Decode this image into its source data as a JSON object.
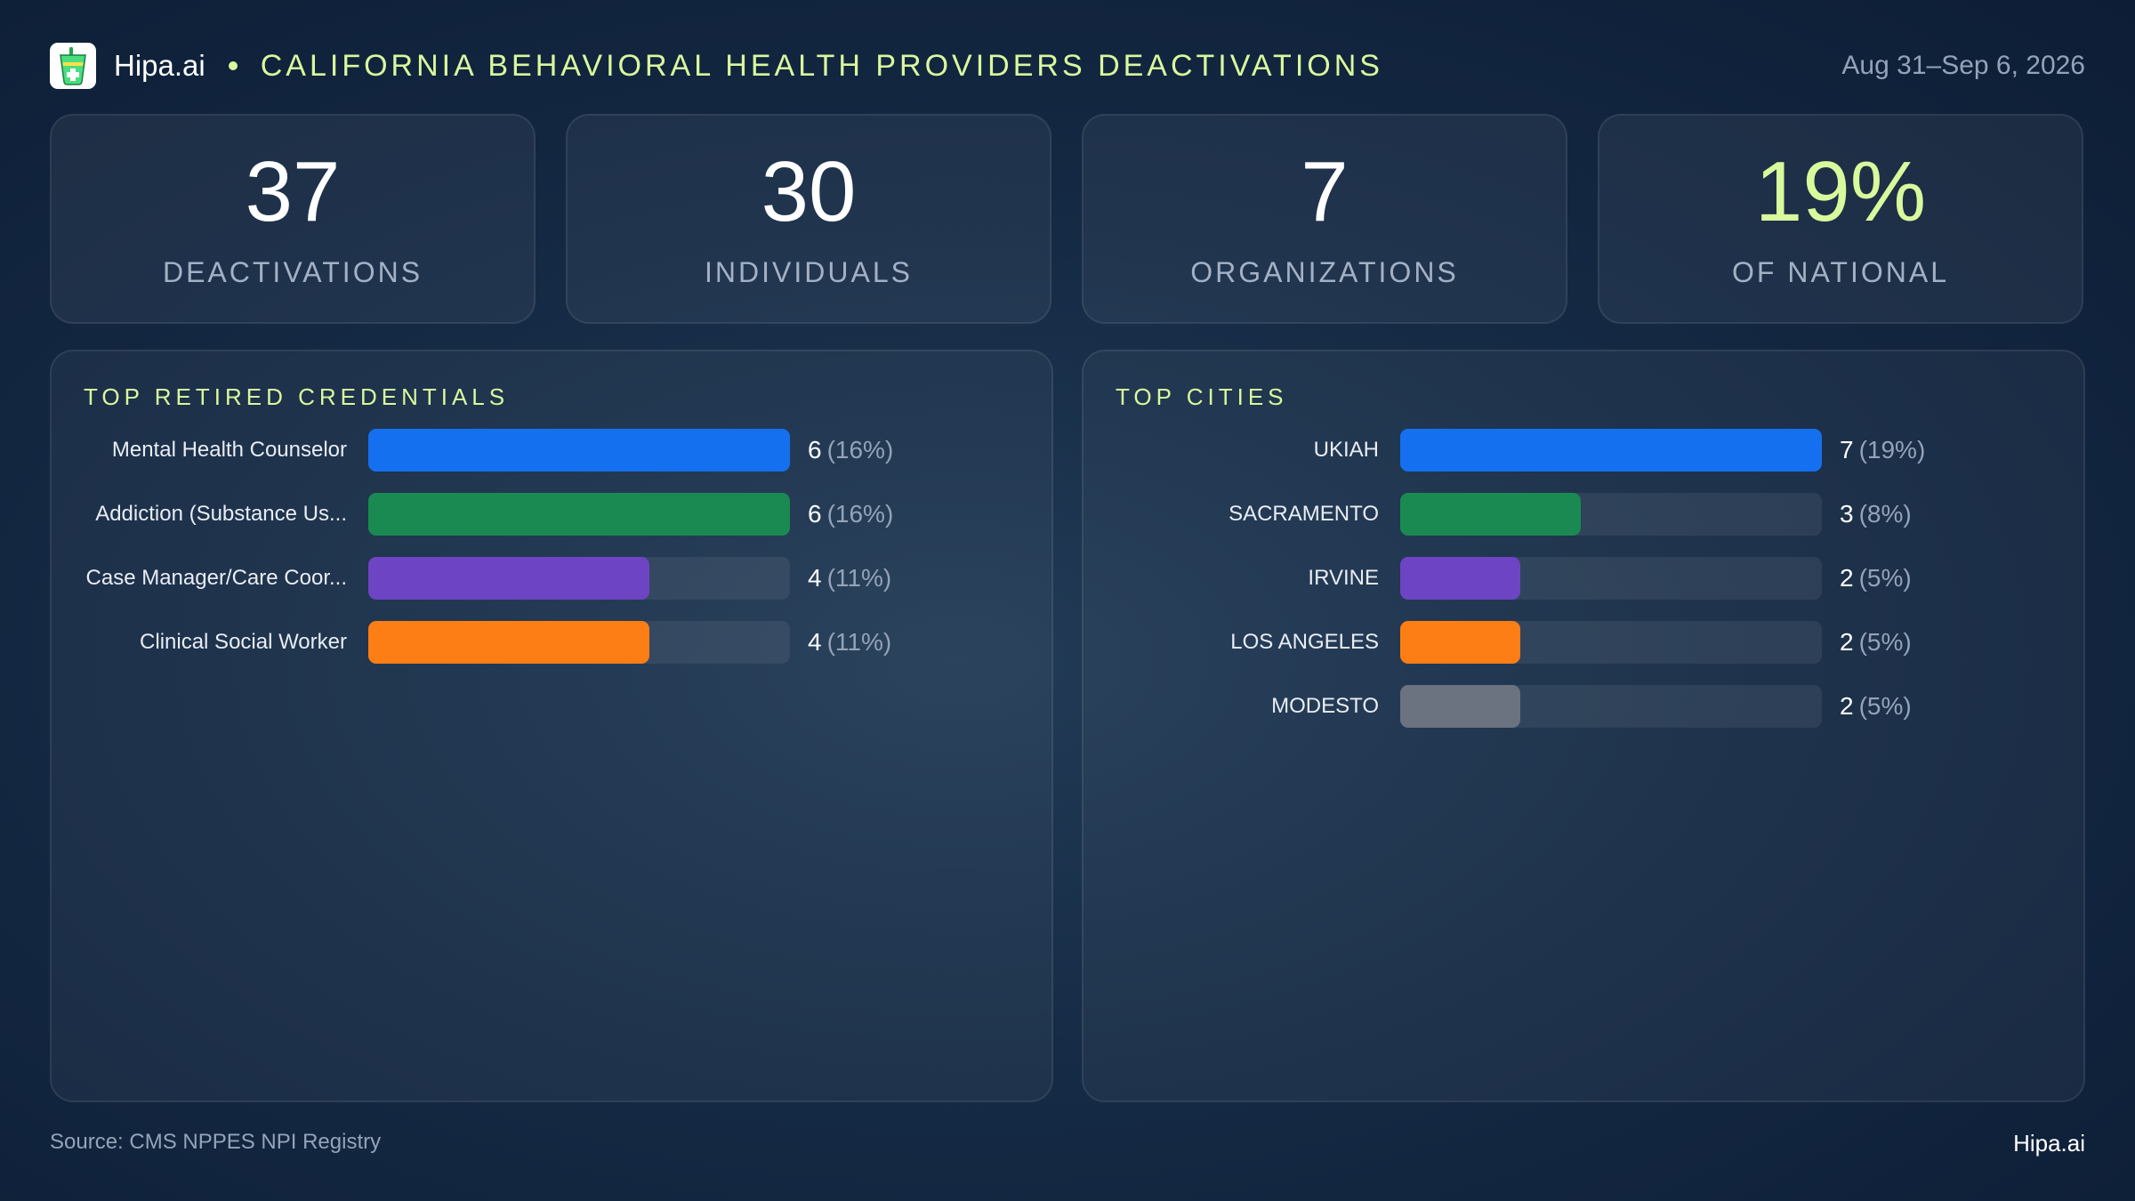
{
  "header": {
    "brand": "Hipa.ai",
    "title": "CALIFORNIA BEHAVIORAL HEALTH PROVIDERS DEACTIVATIONS",
    "date": "Aug 31–Sep 6, 2026",
    "logo_icon": "medical-cup-icon"
  },
  "colors": {
    "accent": "#d9f99d",
    "blue": "#1570ef",
    "green": "#1a8a52",
    "purple": "#6d44c3",
    "orange": "#fd7e14",
    "gray": "#6b7280"
  },
  "kpis": [
    {
      "value": "37",
      "label": "DEACTIVATIONS",
      "color": "#ffffff"
    },
    {
      "value": "30",
      "label": "INDIVIDUALS",
      "color": "#ffffff"
    },
    {
      "value": "7",
      "label": "ORGANIZATIONS",
      "color": "#ffffff"
    },
    {
      "value": "19%",
      "label": "OF NATIONAL",
      "color": "#d9f99d"
    }
  ],
  "chart_data": [
    {
      "type": "bar",
      "orientation": "horizontal",
      "title": "TOP RETIRED CREDENTIALS",
      "categories": [
        "Mental Health Counselor",
        "Addiction (Substance Us...",
        "Case Manager/Care Coor...",
        "Clinical Social Worker"
      ],
      "values": [
        6,
        6,
        4,
        4
      ],
      "percent_labels": [
        "(16%)",
        "(16%)",
        "(11%)",
        "(11%)"
      ],
      "colors": [
        "#1570ef",
        "#1a8a52",
        "#6d44c3",
        "#fd7e14"
      ],
      "xlim": [
        0,
        6
      ]
    },
    {
      "type": "bar",
      "orientation": "horizontal",
      "title": "TOP CITIES",
      "categories": [
        "UKIAH",
        "SACRAMENTO",
        "IRVINE",
        "LOS ANGELES",
        "MODESTO"
      ],
      "values": [
        7,
        3,
        2,
        2,
        2
      ],
      "percent_labels": [
        "(19%)",
        "(8%)",
        "(5%)",
        "(5%)",
        "(5%)"
      ],
      "colors": [
        "#1570ef",
        "#1a8a52",
        "#6d44c3",
        "#fd7e14",
        "#6b7280"
      ],
      "xlim": [
        0,
        7
      ]
    }
  ],
  "footer": {
    "source": "Source: CMS NPPES NPI Registry",
    "brand": "Hipa.ai"
  }
}
